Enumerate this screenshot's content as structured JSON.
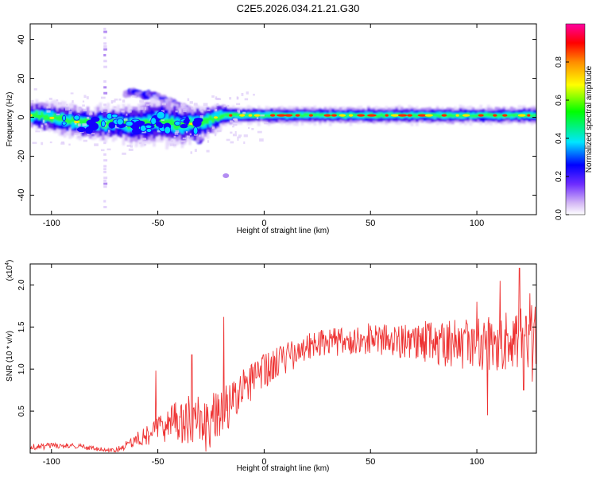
{
  "figure_title": "C2E5.2026.034.21.21.G30",
  "chart_data": [
    {
      "type": "heatmap",
      "title": "C2E5.2026.034.21.21.G30",
      "xlabel": "Height of straight line (km)",
      "ylabel": "Frequency (Hz)",
      "xlim": [
        -110,
        128
      ],
      "ylim": [
        -50,
        48
      ],
      "xticks": [
        -100,
        -50,
        0,
        50,
        100
      ],
      "xtick_labels": [
        "-100",
        "-50",
        "0",
        "50",
        "100"
      ],
      "yticks": [
        -40,
        -20,
        0,
        20,
        40
      ],
      "ytick_labels": [
        "-40",
        "-20",
        "0",
        "20",
        "40"
      ],
      "colorbar": {
        "label": "Normalized spectral amplitude",
        "range": [
          0,
          1
        ],
        "ticks": [
          0.0,
          0.2,
          0.4,
          0.6,
          0.8
        ],
        "tick_labels": [
          "0.0",
          "0.2",
          "0.4",
          "0.6",
          "0.8"
        ]
      },
      "band": {
        "description": "dominant frequency band near 0 Hz",
        "center_hz": [
          {
            "x": -110,
            "f": 1
          },
          {
            "x": -95,
            "f": -1
          },
          {
            "x": -85,
            "f": -3
          },
          {
            "x": -70,
            "f": -3
          },
          {
            "x": -60,
            "f": -4
          },
          {
            "x": -50,
            "f": -2
          },
          {
            "x": -40,
            "f": -4
          },
          {
            "x": -30,
            "f": -3
          },
          {
            "x": -20,
            "f": 1
          },
          {
            "x": 0,
            "f": 1
          },
          {
            "x": 128,
            "f": 1
          }
        ],
        "half_width_hz": [
          {
            "x": -110,
            "w": 5
          },
          {
            "x": -70,
            "w": 6
          },
          {
            "x": -50,
            "w": 8
          },
          {
            "x": -30,
            "w": 6
          },
          {
            "x": -15,
            "w": 3
          },
          {
            "x": 128,
            "w": 3
          }
        ]
      },
      "features": [
        {
          "type": "vertical_streak",
          "x": -75,
          "f_range": [
            -47,
            48
          ]
        },
        {
          "type": "branch",
          "points": [
            {
              "x": -65,
              "f": 13
            },
            {
              "x": -50,
              "f": 11
            },
            {
              "x": -35,
              "f": 3
            }
          ]
        },
        {
          "type": "branch",
          "points": [
            {
              "x": -40,
              "f": -5
            },
            {
              "x": -30,
              "f": -12
            }
          ]
        },
        {
          "type": "blob",
          "x": -18,
          "f": -30
        }
      ]
    },
    {
      "type": "line",
      "xlabel": "Height of straight line (km)",
      "ylabel": "SNR (10 * v/v)",
      "exponent_label": "(x10",
      "exponent_value": "4",
      "exponent_close": ")",
      "xlim": [
        -110,
        128
      ],
      "ylim": [
        0,
        2.25
      ],
      "xticks": [
        -100,
        -50,
        0,
        50,
        100
      ],
      "xtick_labels": [
        "-100",
        "-50",
        "0",
        "50",
        "100"
      ],
      "yticks": [
        0.5,
        1.0,
        1.5,
        2.0
      ],
      "ytick_labels": [
        "0.5",
        "1.0",
        "1.5",
        "2.0"
      ],
      "color": "#ee3333",
      "series": [
        {
          "name": "SNR",
          "baseline": [
            {
              "x": -110,
              "y": 0.07
            },
            {
              "x": -90,
              "y": 0.09
            },
            {
              "x": -80,
              "y": 0.05
            },
            {
              "x": -70,
              "y": 0.03
            },
            {
              "x": -60,
              "y": 0.15
            },
            {
              "x": -50,
              "y": 0.25
            },
            {
              "x": -40,
              "y": 0.35
            },
            {
              "x": -33,
              "y": 0.4
            },
            {
              "x": -28,
              "y": 0.25
            },
            {
              "x": -20,
              "y": 0.5
            },
            {
              "x": -15,
              "y": 0.55
            },
            {
              "x": -10,
              "y": 0.75
            },
            {
              "x": 0,
              "y": 0.95
            },
            {
              "x": 10,
              "y": 1.1
            },
            {
              "x": 20,
              "y": 1.25
            },
            {
              "x": 30,
              "y": 1.3
            },
            {
              "x": 50,
              "y": 1.35
            },
            {
              "x": 75,
              "y": 1.3
            },
            {
              "x": 100,
              "y": 1.25
            },
            {
              "x": 128,
              "y": 1.35
            }
          ],
          "spread": [
            {
              "x": -110,
              "s": 0.05
            },
            {
              "x": -70,
              "s": 0.03
            },
            {
              "x": -55,
              "s": 0.15
            },
            {
              "x": -40,
              "s": 0.35
            },
            {
              "x": -25,
              "s": 0.4
            },
            {
              "x": -10,
              "s": 0.3
            },
            {
              "x": 20,
              "s": 0.2
            },
            {
              "x": 60,
              "s": 0.25
            },
            {
              "x": 100,
              "s": 0.4
            },
            {
              "x": 128,
              "s": 0.5
            }
          ],
          "peaks": [
            {
              "x": -51,
              "y": 0.98
            },
            {
              "x": -34,
              "y": 1.17
            },
            {
              "x": -19,
              "y": 1.62
            },
            {
              "x": 100,
              "y": 1.8
            },
            {
              "x": 111,
              "y": 2.05
            },
            {
              "x": 120,
              "y": 2.2
            },
            {
              "x": 125,
              "y": 1.9
            }
          ],
          "dips": [
            {
              "x": 105,
              "y": 0.45
            },
            {
              "x": 122,
              "y": 0.75
            },
            {
              "x": 126,
              "y": 0.85
            }
          ]
        }
      ]
    }
  ]
}
